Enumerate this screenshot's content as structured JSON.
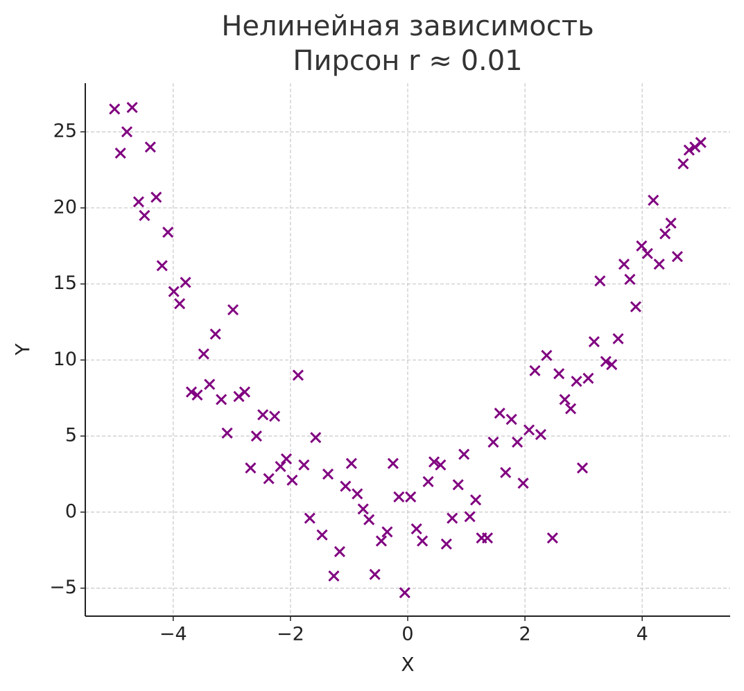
{
  "chart_data": {
    "type": "scatter",
    "title": [
      "Нелинейная зависимость",
      "Пирсон r ≈ 0.01"
    ],
    "xlabel": "X",
    "ylabel": "Y",
    "color": "#800080",
    "marker": "x",
    "grid": true,
    "xlim": [
      -5.5,
      5.5
    ],
    "ylim": [
      -6.84,
      28.2
    ],
    "xticks": [
      {
        "value": -4,
        "label": "−4"
      },
      {
        "value": -2,
        "label": "−2"
      },
      0,
      2,
      4
    ],
    "yticks": [
      {
        "value": -5,
        "label": "−5"
      },
      0,
      5,
      10,
      15,
      20,
      25
    ],
    "x": [
      -5.0,
      -4.9,
      -4.79,
      -4.7,
      -4.59,
      -4.49,
      -4.39,
      -4.29,
      -4.19,
      -4.09,
      -3.99,
      -3.89,
      -3.79,
      -3.69,
      -3.59,
      -3.48,
      -3.38,
      -3.28,
      -3.18,
      -3.08,
      -2.98,
      -2.88,
      -2.78,
      -2.68,
      -2.58,
      -2.47,
      -2.37,
      -2.27,
      -2.17,
      -2.07,
      -1.97,
      -1.87,
      -1.77,
      -1.67,
      -1.57,
      -1.46,
      -1.36,
      -1.26,
      -1.16,
      -1.06,
      -0.96,
      -0.86,
      -0.76,
      -0.66,
      -0.56,
      -0.45,
      -0.35,
      -0.25,
      -0.15,
      -0.05,
      0.05,
      0.15,
      0.25,
      0.35,
      0.45,
      0.56,
      0.66,
      0.76,
      0.86,
      0.96,
      1.06,
      1.16,
      1.26,
      1.36,
      1.46,
      1.57,
      1.67,
      1.77,
      1.87,
      1.97,
      2.07,
      2.17,
      2.27,
      2.37,
      2.47,
      2.58,
      2.68,
      2.78,
      2.88,
      2.98,
      3.08,
      3.18,
      3.28,
      3.38,
      3.48,
      3.59,
      3.69,
      3.79,
      3.89,
      3.99,
      4.09,
      4.19,
      4.29,
      4.39,
      4.49,
      4.6,
      4.7,
      4.8,
      4.9,
      5.0
    ],
    "values": [
      26.5,
      23.6,
      25.0,
      26.6,
      20.4,
      19.5,
      24.0,
      20.7,
      16.2,
      18.4,
      14.5,
      13.7,
      15.1,
      7.9,
      7.7,
      10.4,
      8.4,
      11.7,
      7.4,
      5.2,
      13.3,
      7.6,
      7.9,
      2.9,
      5.0,
      6.4,
      2.2,
      6.3,
      3.0,
      3.5,
      2.1,
      9.0,
      3.1,
      -0.4,
      4.9,
      -1.5,
      2.5,
      -4.2,
      -2.6,
      1.7,
      3.2,
      1.2,
      0.2,
      -0.5,
      -4.1,
      -1.9,
      -1.3,
      3.2,
      1.0,
      -5.3,
      1.0,
      -1.1,
      -1.9,
      2.0,
      3.3,
      3.1,
      -2.1,
      -0.4,
      1.8,
      3.8,
      -0.3,
      0.8,
      -1.7,
      -1.7,
      4.6,
      6.5,
      2.6,
      6.1,
      4.6,
      1.9,
      5.4,
      9.3,
      5.1,
      10.3,
      -1.7,
      9.1,
      7.4,
      6.8,
      8.6,
      2.9,
      8.8,
      11.2,
      15.2,
      9.9,
      9.7,
      11.4,
      16.3,
      15.3,
      13.5,
      17.5,
      17.0,
      20.5,
      16.3,
      18.3,
      19.0,
      16.8,
      22.9,
      23.8,
      24.0,
      24.3
    ]
  }
}
